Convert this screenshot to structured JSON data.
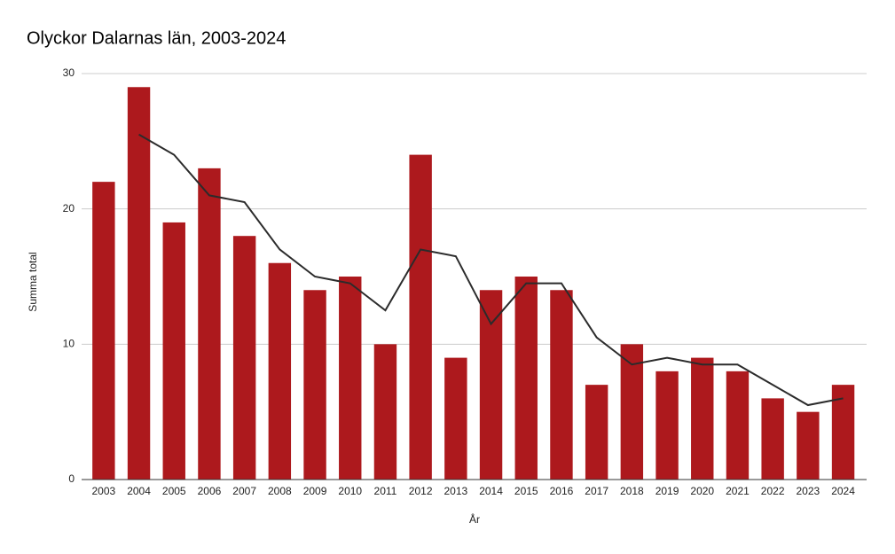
{
  "chart_data": {
    "type": "bar",
    "title": "Olyckor Dalarnas län, 2003-2024",
    "x_label": "År",
    "y_label": "Summa total",
    "categories": [
      "2003",
      "2004",
      "2005",
      "2006",
      "2007",
      "2008",
      "2009",
      "2010",
      "2011",
      "2012",
      "2013",
      "2014",
      "2015",
      "2016",
      "2017",
      "2018",
      "2019",
      "2020",
      "2021",
      "2022",
      "2023",
      "2024"
    ],
    "series": [
      {
        "type": "bar",
        "color": "#ad191d",
        "values": [
          22,
          29,
          19,
          23,
          18,
          16,
          14,
          15,
          10,
          24,
          9,
          14,
          15,
          14,
          7,
          10,
          8,
          9,
          8,
          6,
          5,
          7
        ]
      },
      {
        "type": "line",
        "color": "#2b2b2b",
        "values": [
          null,
          25.5,
          24,
          21,
          20.5,
          17,
          15,
          14.5,
          12.5,
          17,
          16.5,
          11.5,
          14.5,
          14.5,
          10.5,
          8.5,
          9,
          8.5,
          8.5,
          7,
          5.5,
          6
        ]
      }
    ],
    "ylim": [
      0,
      30
    ],
    "yticks": [
      0,
      10,
      20,
      30
    ],
    "grid": true
  }
}
